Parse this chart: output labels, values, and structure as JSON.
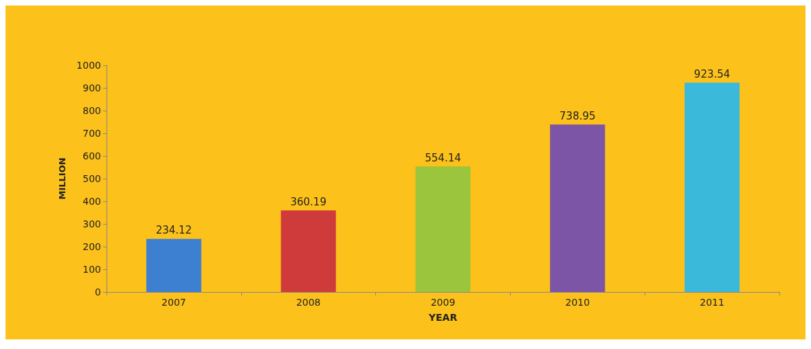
{
  "chart_data": {
    "type": "bar",
    "xlabel": "YEAR",
    "ylabel": "MILLION",
    "categories": [
      "2007",
      "2008",
      "2009",
      "2010",
      "2011"
    ],
    "values": [
      234.12,
      360.19,
      554.14,
      738.95,
      923.54
    ],
    "colors": [
      "#3d7fd1",
      "#cf3b3b",
      "#9bc53d",
      "#7c55a6",
      "#3bb9da"
    ],
    "ylim": [
      0,
      1000
    ],
    "yticks": [
      0,
      100,
      200,
      300,
      400,
      500,
      600,
      700,
      800,
      900,
      1000
    ],
    "grid": false,
    "data_labels": true
  }
}
